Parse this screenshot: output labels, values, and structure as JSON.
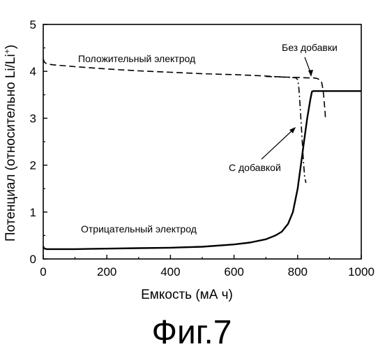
{
  "chart_data": {
    "type": "line",
    "xlabel": "Емкость (мА ч)",
    "ylabel": "Потенциал (относительно Li/Li",
    "ylabel_superscript": "+",
    "ylabel_close": ")",
    "xlim": [
      0,
      1000
    ],
    "ylim": [
      0,
      5
    ],
    "xticks": [
      0,
      200,
      400,
      600,
      800,
      1000
    ],
    "yticks": [
      0,
      1,
      2,
      3,
      4,
      5
    ],
    "grid": false,
    "legend": "none",
    "series": [
      {
        "name": "Отрицательный электрод",
        "style": "solid",
        "x": [
          0,
          2,
          5,
          10,
          30,
          100,
          200,
          300,
          400,
          500,
          600,
          650,
          700,
          730,
          750,
          770,
          785,
          800,
          810,
          820,
          830,
          840,
          845,
          850,
          900,
          1000
        ],
        "y": [
          0.27,
          0.23,
          0.22,
          0.21,
          0.21,
          0.21,
          0.22,
          0.23,
          0.24,
          0.26,
          0.31,
          0.35,
          0.42,
          0.5,
          0.58,
          0.75,
          1.0,
          1.5,
          2.0,
          2.5,
          3.0,
          3.4,
          3.57,
          3.58,
          3.58,
          3.58
        ]
      },
      {
        "name": "Положительный электрод",
        "style": "dashed",
        "x": [
          0,
          3,
          10,
          30,
          100,
          200,
          300,
          400,
          500,
          600,
          700,
          750,
          800,
          830,
          850,
          860,
          870,
          875,
          880,
          883,
          886,
          888
        ],
        "y": [
          4.27,
          4.2,
          4.16,
          4.14,
          4.1,
          4.05,
          4.01,
          3.98,
          3.95,
          3.93,
          3.9,
          3.88,
          3.87,
          3.86,
          3.86,
          3.85,
          3.82,
          3.78,
          3.6,
          3.4,
          3.15,
          2.95
        ]
      },
      {
        "name": "Положительный электрод",
        "style": "dashdot",
        "x": [
          700,
          750,
          780,
          795,
          800,
          803,
          806,
          810,
          814,
          818,
          822,
          826
        ],
        "y": [
          3.89,
          3.88,
          3.87,
          3.86,
          3.82,
          3.7,
          3.45,
          3.0,
          2.55,
          2.1,
          1.75,
          1.62
        ]
      }
    ],
    "annotations": [
      {
        "text": "Положительный электрод"
      },
      {
        "text": "Без добавки"
      },
      {
        "text": "С добавкой"
      },
      {
        "text": "Отрицательный электрод"
      }
    ]
  },
  "figure_label": "Фиг.7"
}
